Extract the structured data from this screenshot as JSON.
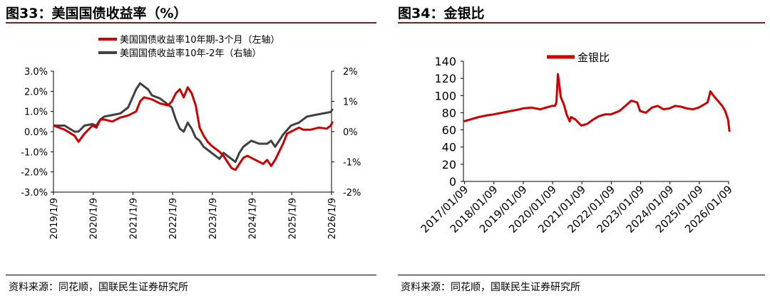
{
  "left": {
    "title": "图33：美国国债收益率（%）",
    "source": "资料来源：同花顺，国联民生证券研究所"
  },
  "right": {
    "title": "图34：金银比",
    "source": "资料来源：同花顺，国联民生证券研究所"
  },
  "colors": {
    "red": "#cc0000",
    "gray": "#404040",
    "rule": "#8b1a1a"
  },
  "chart_data": [
    {
      "type": "line",
      "title": "美国国债收益率（%）",
      "legend_position": "top",
      "x_ticks": [
        "2019/1/9",
        "2020/1/9",
        "2021/1/9",
        "2022/1/9",
        "2023/1/9",
        "2024/1/9",
        "2025/1/9",
        "2026/1/9"
      ],
      "y_left": {
        "range": [
          -3,
          3
        ],
        "ticks": [
          "3.0%",
          "2.0%",
          "1.0%",
          "0.0%",
          "-1.0%",
          "-2.0%",
          "-3.0%"
        ]
      },
      "y_right": {
        "range": [
          -2,
          2
        ],
        "ticks": [
          "2%",
          "1%",
          "0%",
          "-1%",
          "-2%"
        ]
      },
      "series": [
        {
          "name": "美国国债收益率10年期-3个月（左轴）",
          "axis": "left",
          "x": [
            2019.02,
            2019.3,
            2019.55,
            2019.65,
            2019.8,
            2020.0,
            2020.1,
            2020.2,
            2020.3,
            2020.5,
            2020.7,
            2020.9,
            2021.1,
            2021.2,
            2021.3,
            2021.5,
            2021.7,
            2021.9,
            2022.0,
            2022.1,
            2022.2,
            2022.3,
            2022.4,
            2022.5,
            2022.6,
            2022.7,
            2022.8,
            2022.9,
            2023.0,
            2023.2,
            2023.3,
            2023.4,
            2023.5,
            2023.6,
            2023.7,
            2023.8,
            2023.9,
            2024.0,
            2024.1,
            2024.2,
            2024.3,
            2024.4,
            2024.5,
            2024.6,
            2024.7,
            2024.8,
            2024.9,
            2025.0,
            2025.1,
            2025.2,
            2025.3,
            2025.5,
            2025.7,
            2025.9,
            2026.0,
            2026.05
          ],
          "y": [
            0.3,
            0.1,
            -0.2,
            -0.5,
            -0.1,
            0.3,
            0.2,
            0.6,
            0.6,
            0.5,
            0.7,
            0.8,
            1.0,
            1.5,
            1.7,
            1.6,
            1.4,
            1.3,
            1.5,
            1.9,
            2.1,
            1.7,
            2.2,
            1.9,
            1.3,
            0.2,
            -0.2,
            -0.5,
            -0.7,
            -1.0,
            -1.2,
            -1.5,
            -1.8,
            -1.9,
            -1.6,
            -1.3,
            -1.2,
            -1.3,
            -1.4,
            -1.5,
            -1.6,
            -1.4,
            -1.7,
            -1.4,
            -1.0,
            -0.6,
            -0.1,
            0.0,
            0.1,
            0.2,
            0.1,
            0.1,
            0.2,
            0.15,
            0.3,
            0.5
          ]
        },
        {
          "name": "美国国债收益率10年-2年（右轴）",
          "axis": "right",
          "x": [
            2019.02,
            2019.3,
            2019.55,
            2019.65,
            2019.8,
            2020.0,
            2020.1,
            2020.2,
            2020.3,
            2020.5,
            2020.7,
            2020.9,
            2021.0,
            2021.1,
            2021.2,
            2021.3,
            2021.4,
            2021.5,
            2021.7,
            2021.9,
            2022.0,
            2022.1,
            2022.2,
            2022.3,
            2022.4,
            2022.5,
            2022.6,
            2022.7,
            2022.8,
            2022.9,
            2023.0,
            2023.2,
            2023.3,
            2023.5,
            2023.6,
            2023.7,
            2023.8,
            2023.9,
            2024.0,
            2024.2,
            2024.4,
            2024.5,
            2024.6,
            2024.7,
            2024.8,
            2025.0,
            2025.2,
            2025.4,
            2025.6,
            2025.8,
            2026.0,
            2026.05
          ],
          "y": [
            0.2,
            0.2,
            0.0,
            0.0,
            0.2,
            0.25,
            0.2,
            0.4,
            0.5,
            0.55,
            0.6,
            0.8,
            1.1,
            1.4,
            1.6,
            1.5,
            1.4,
            1.2,
            1.1,
            0.9,
            0.8,
            0.4,
            0.1,
            0.0,
            0.3,
            0.1,
            -0.2,
            -0.3,
            -0.5,
            -0.6,
            -0.7,
            -0.9,
            -0.7,
            -0.9,
            -1.0,
            -0.7,
            -0.5,
            -0.4,
            -0.3,
            -0.4,
            -0.4,
            -0.3,
            -0.5,
            -0.3,
            -0.1,
            0.2,
            0.3,
            0.5,
            0.55,
            0.6,
            0.65,
            0.75
          ]
        }
      ]
    },
    {
      "type": "line",
      "title": "金银比",
      "legend_position": "top",
      "x_ticks": [
        "2017/01/09",
        "2018/01/09",
        "2019/01/09",
        "2020/01/09",
        "2021/01/09",
        "2022/01/09",
        "2023/01/09",
        "2024/01/09",
        "2025/01/09",
        "2026/01/09"
      ],
      "y_range": [
        0,
        140
      ],
      "y_ticks": [
        "140",
        "120",
        "100",
        "80",
        "60",
        "40",
        "20",
        "0"
      ],
      "series": [
        {
          "name": "金银比",
          "x": [
            2017.0,
            2017.2,
            2017.5,
            2017.8,
            2018.0,
            2018.3,
            2018.6,
            2018.9,
            2019.0,
            2019.3,
            2019.6,
            2019.8,
            2020.0,
            2020.1,
            2020.15,
            2020.2,
            2020.25,
            2020.3,
            2020.4,
            2020.5,
            2020.6,
            2020.65,
            2020.7,
            2020.8,
            2021.0,
            2021.2,
            2021.4,
            2021.6,
            2021.8,
            2022.0,
            2022.3,
            2022.5,
            2022.7,
            2022.9,
            2023.0,
            2023.2,
            2023.4,
            2023.6,
            2023.8,
            2024.0,
            2024.2,
            2024.4,
            2024.6,
            2024.8,
            2025.0,
            2025.2,
            2025.3,
            2025.4,
            2025.5,
            2025.7,
            2025.8,
            2025.9,
            2026.0,
            2026.05
          ],
          "y": [
            70,
            72,
            75,
            77,
            78,
            80,
            82,
            84,
            85,
            86,
            84,
            86,
            88,
            88,
            92,
            125,
            112,
            98,
            90,
            78,
            70,
            75,
            74,
            72,
            65,
            67,
            72,
            76,
            78,
            78,
            82,
            88,
            94,
            92,
            82,
            80,
            86,
            88,
            84,
            85,
            88,
            87,
            85,
            84,
            86,
            90,
            92,
            105,
            100,
            92,
            88,
            82,
            72,
            58
          ]
        }
      ]
    }
  ]
}
